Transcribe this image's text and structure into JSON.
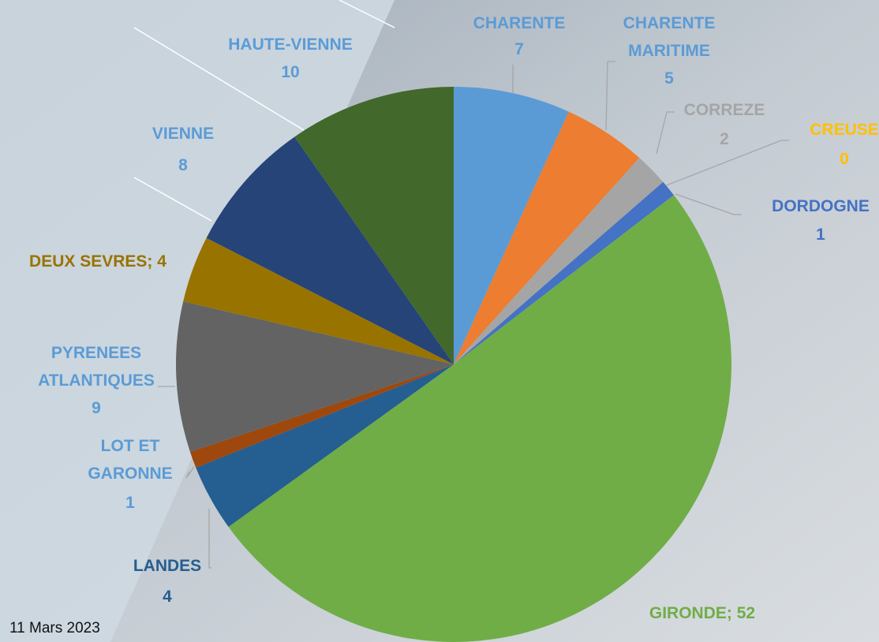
{
  "chart_data": {
    "type": "pie",
    "categories": [
      "CHARENTE",
      "CHARENTE MARITIME",
      "CORREZE",
      "CREUSE",
      "DORDOGNE",
      "GIRONDE",
      "LANDES",
      "LOT ET GARONNE",
      "PYRENEES ATLANTIQUES",
      "DEUX SEVRES",
      "VIENNE",
      "HAUTE-VIENNE"
    ],
    "values": [
      7,
      5,
      2,
      0,
      1,
      52,
      4,
      1,
      9,
      4,
      8,
      10
    ],
    "value_labels": [
      null,
      null,
      null,
      null,
      null,
      "GIRONDE; 52",
      null,
      null,
      null,
      "DEUX SEVRES; 4",
      null,
      null
    ],
    "colors": [
      "#5b9bd5",
      "#ed7d31",
      "#a5a5a5",
      "#ffc000",
      "#4472c4",
      "#70ad47",
      "#255e91",
      "#9e480e",
      "#636363",
      "#997300",
      "#264478",
      "#43682b"
    ],
    "annotation": "11 Mars 2023"
  }
}
